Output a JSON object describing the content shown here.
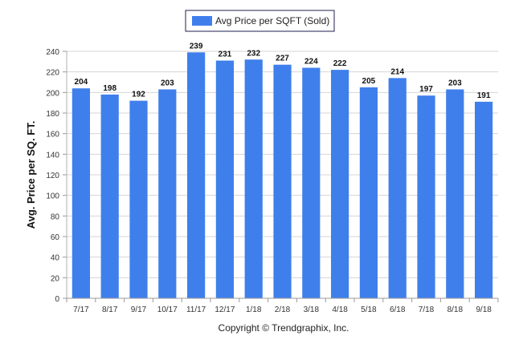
{
  "chart_data": {
    "type": "bar",
    "categories": [
      "7/17",
      "8/17",
      "9/17",
      "10/17",
      "11/17",
      "12/17",
      "1/18",
      "2/18",
      "3/18",
      "4/18",
      "5/18",
      "6/18",
      "7/18",
      "8/18",
      "9/18"
    ],
    "series": [
      {
        "name": "Avg Price per SQFT (Sold)",
        "values": [
          204,
          198,
          192,
          203,
          239,
          231,
          232,
          227,
          224,
          222,
          205,
          214,
          197,
          203,
          191
        ],
        "color": "#3f7fec"
      }
    ],
    "title": "",
    "xlabel": "",
    "ylabel": "Avg. Price per SQ. FT.",
    "ylim": [
      0,
      240
    ],
    "yticks": [
      0,
      20,
      40,
      60,
      80,
      100,
      120,
      140,
      160,
      180,
      200,
      220,
      240
    ],
    "grid": true,
    "legend_position": "top-center",
    "data_labels": true
  },
  "footer": {
    "copyright": "Copyright © Trendgraphix, Inc."
  }
}
